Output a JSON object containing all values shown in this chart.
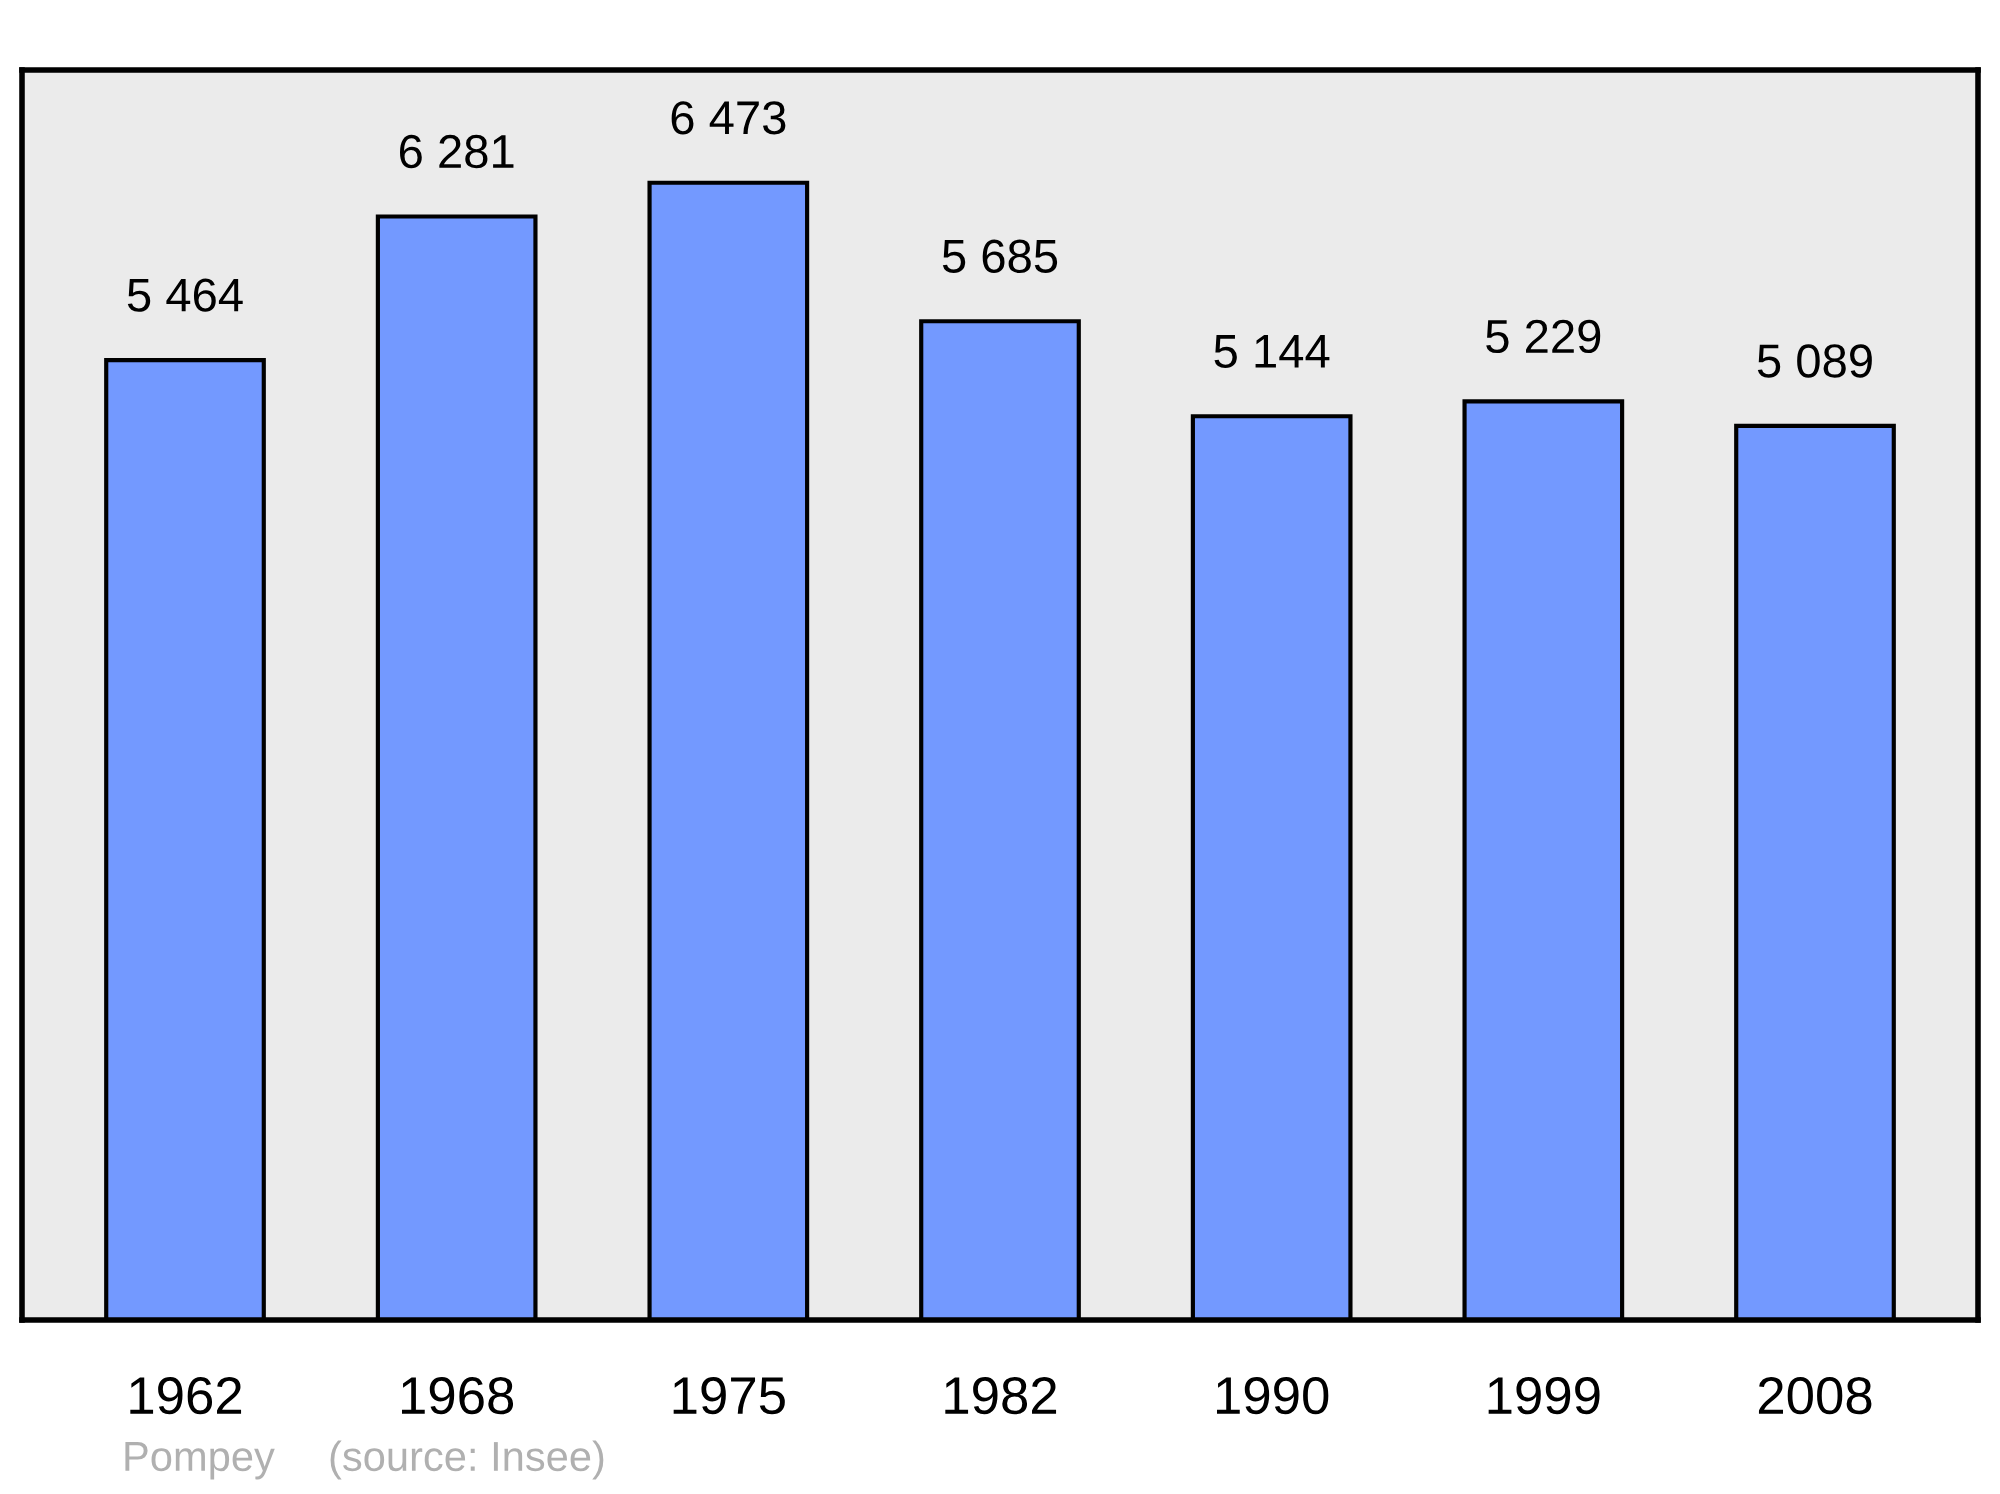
{
  "chart_data": {
    "type": "bar",
    "categories": [
      "1962",
      "1968",
      "1975",
      "1982",
      "1990",
      "1999",
      "2008"
    ],
    "values": [
      5464,
      6281,
      6473,
      5685,
      5144,
      5229,
      5089
    ],
    "value_labels": [
      "5 464",
      "6 281",
      "6 473",
      "5 685",
      "5 144",
      "5 229",
      "5 089"
    ],
    "color": "#7399ff",
    "ylim": [
      0,
      7115
    ],
    "tick_labels": "x",
    "grid": false,
    "legend": false,
    "annotations": [
      "Pompey",
      "(source: Insee)"
    ]
  }
}
